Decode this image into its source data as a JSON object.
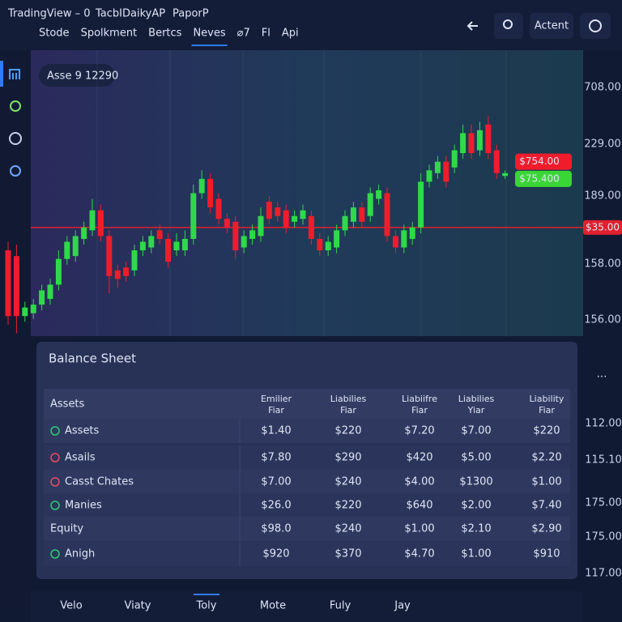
{
  "header": {
    "brand": "TradingView – 0",
    "crumbs": [
      "TacbIDaikyAP",
      "PaporP"
    ],
    "nav": [
      "Stode",
      "Spolkment",
      "Bertcs",
      "Neves",
      "⌀7",
      "Fl",
      "Api"
    ],
    "active_nav": 3,
    "action": "Actent"
  },
  "chart": {
    "type": "candlestick",
    "asset_badge": "Asse 9 12290",
    "ylim": [
      0,
      100
    ],
    "up_color": "#2fd94a",
    "down_color": "#f01c2c",
    "candles": [
      [
        30,
        7,
        33,
        4
      ],
      [
        28,
        7,
        32,
        1
      ],
      [
        7,
        10,
        12,
        5
      ],
      [
        8,
        11,
        13,
        6
      ],
      [
        11,
        16,
        18,
        9
      ],
      [
        13,
        18,
        20,
        11
      ],
      [
        18,
        27,
        30,
        16
      ],
      [
        27,
        33,
        35,
        25
      ],
      [
        28,
        35,
        37,
        26
      ],
      [
        34,
        38,
        40,
        32
      ],
      [
        37,
        44,
        48,
        35
      ],
      [
        44,
        35,
        46,
        33
      ],
      [
        35,
        21,
        37,
        15
      ],
      [
        23,
        20,
        25,
        17
      ],
      [
        24,
        21,
        26,
        19
      ],
      [
        23,
        30,
        32,
        21
      ],
      [
        30,
        33,
        35,
        28
      ],
      [
        31,
        35,
        37,
        29
      ],
      [
        37,
        34,
        39,
        32
      ],
      [
        34,
        26,
        36,
        24
      ],
      [
        30,
        33,
        36,
        28
      ],
      [
        30,
        34,
        37,
        28
      ],
      [
        34,
        50,
        53,
        32
      ],
      [
        50,
        55,
        58,
        48
      ],
      [
        55,
        45,
        57,
        43
      ],
      [
        48,
        41,
        50,
        39
      ],
      [
        41,
        38,
        43,
        36
      ],
      [
        40,
        30,
        42,
        27
      ],
      [
        31,
        35,
        37,
        29
      ],
      [
        34,
        37,
        39,
        32
      ],
      [
        35,
        42,
        45,
        33
      ],
      [
        47,
        41,
        49,
        39
      ],
      [
        45,
        42,
        47,
        40
      ],
      [
        44,
        38,
        46,
        36
      ],
      [
        40,
        42,
        44,
        38
      ],
      [
        41,
        44,
        46,
        39
      ],
      [
        42,
        34,
        44,
        32
      ],
      [
        34,
        30,
        36,
        28
      ],
      [
        30,
        33,
        35,
        28
      ],
      [
        31,
        37,
        39,
        29
      ],
      [
        37,
        42,
        44,
        35
      ],
      [
        40,
        45,
        47,
        38
      ],
      [
        45,
        40,
        47,
        38
      ],
      [
        42,
        50,
        52,
        40
      ],
      [
        48,
        51,
        53,
        46
      ],
      [
        50,
        35,
        52,
        33
      ],
      [
        35,
        31,
        37,
        29
      ],
      [
        31,
        37,
        39,
        29
      ],
      [
        34,
        38,
        40,
        32
      ],
      [
        38,
        54,
        57,
        36
      ],
      [
        54,
        58,
        60,
        52
      ],
      [
        57,
        61,
        63,
        55
      ],
      [
        61,
        54,
        63,
        52
      ],
      [
        59,
        65,
        67,
        57
      ],
      [
        64,
        71,
        74,
        62
      ],
      [
        71,
        64,
        74,
        62
      ],
      [
        65,
        72,
        75,
        63
      ],
      [
        74,
        64,
        77,
        62
      ],
      [
        65,
        57,
        67,
        55
      ],
      [
        56,
        57,
        58,
        55
      ]
    ],
    "level": 38,
    "level_label": "$35.00",
    "tags": [
      {
        "label": "$754.00",
        "value": 61,
        "color": "#f01c2c"
      },
      {
        "label": "$75.400",
        "value": 55,
        "color": "#39d634"
      }
    ],
    "price_labels": [
      "708.00",
      "229.00",
      "189.00",
      "158.00",
      "156.00"
    ]
  },
  "balance_sheet": {
    "title": "Balance Sheet",
    "columns": [
      [
        "Assets"
      ],
      [
        "Emilier",
        "Fiar"
      ],
      [
        "Liabilies",
        "Fiar"
      ],
      [
        "Liabiifre",
        "Fiar"
      ],
      [
        "Liabilies",
        "Yiar"
      ],
      [
        "Liability",
        "Fiar"
      ]
    ],
    "rows": [
      {
        "label": "Assets",
        "dot": "#2ecc71",
        "cells": [
          "$1.40",
          "$220",
          "$7.20",
          "$7.00",
          "$220"
        ]
      },
      {
        "label": "Asails",
        "dot": "#e84a5f",
        "cells": [
          "$7.80",
          "$290",
          "$420",
          "$5.00",
          "$2.20"
        ]
      },
      {
        "label": "Casst Chates",
        "dot": "#e84a5f",
        "cells": [
          "$7.00",
          "$240",
          "$4.00",
          "$1300",
          "$1.00"
        ]
      },
      {
        "label": "Manies",
        "dot": "#2ecc71",
        "cells": [
          "$26.0",
          "$220",
          "$640",
          "$2.00",
          "$7.40"
        ]
      },
      {
        "label": "Equity",
        "dot": null,
        "cells": [
          "$98.0",
          "$240",
          "$1.00",
          "$2.10",
          "$2.90"
        ]
      },
      {
        "label": "Anigh",
        "dot": "#2ecc71",
        "cells": [
          "$920",
          "$370",
          "$4.70",
          "$1.00",
          "$910"
        ]
      }
    ]
  },
  "side_values": [
    "112.00",
    "115.10",
    "175.00",
    "175.00",
    "117.00"
  ],
  "tabs": [
    "Velo",
    "Viaty",
    "Toly",
    "Mote",
    "Fuly",
    "Jay"
  ],
  "active_tab": 2
}
